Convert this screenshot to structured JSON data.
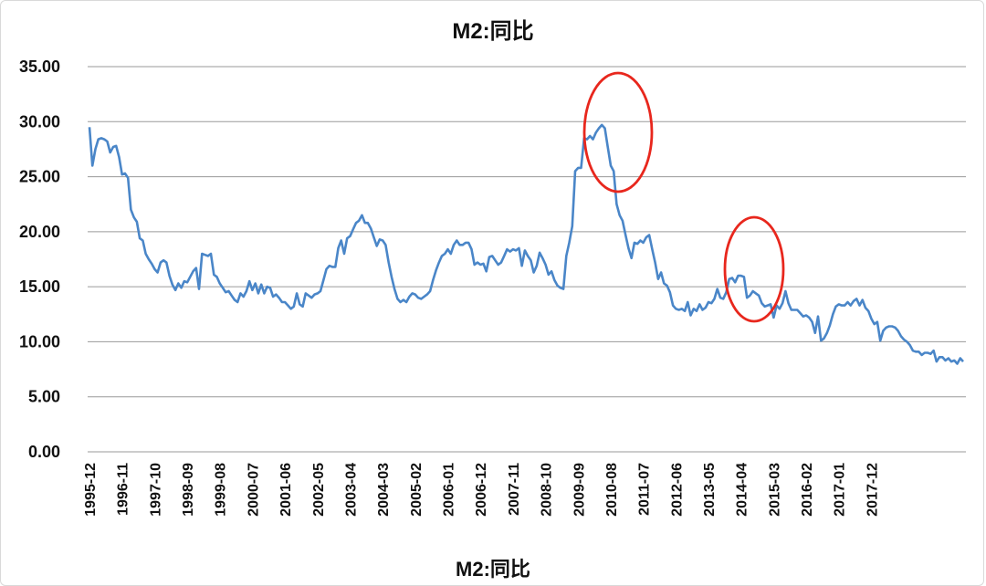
{
  "chart_data": {
    "type": "line",
    "title": "M2:同比",
    "xlabel": "M2:同比",
    "ylabel": "",
    "ylim": [
      0,
      35
    ],
    "yticks": [
      "0.00",
      "5.00",
      "10.00",
      "15.00",
      "20.00",
      "25.00",
      "30.00",
      "35.00"
    ],
    "xticks": [
      "1995-12",
      "1996-11",
      "1997-10",
      "1998-09",
      "1999-08",
      "2000-07",
      "2001-06",
      "2002-05",
      "2003-04",
      "2004-03",
      "2005-02",
      "2006-01",
      "2006-12",
      "2007-11",
      "2008-10",
      "2009-09",
      "2010-08",
      "2011-07",
      "2012-06",
      "2013-05",
      "2014-04",
      "2015-03",
      "2016-02",
      "2017-01",
      "2017-12"
    ],
    "grid": true,
    "legend": "none",
    "line_color": "#4a86c8",
    "annotation_color": "#e8271d",
    "annotations": [
      {
        "type": "ellipse",
        "around": "2009 peak"
      },
      {
        "type": "ellipse",
        "around": "2013 peak"
      }
    ],
    "series": [
      {
        "name": "",
        "x_start": "1995-12",
        "x_end": "2018-08",
        "values": [
          29.5,
          26.0,
          27.5,
          28.4,
          28.5,
          28.4,
          28.2,
          27.2,
          27.7,
          27.8,
          26.8,
          25.2,
          25.3,
          24.9,
          22.0,
          21.3,
          20.9,
          19.4,
          19.2,
          18.0,
          17.5,
          17.1,
          16.6,
          16.3,
          17.2,
          17.4,
          17.2,
          16.0,
          15.2,
          14.7,
          15.3,
          14.9,
          15.5,
          15.4,
          15.9,
          16.4,
          16.7,
          14.8,
          18.0,
          17.9,
          17.8,
          18.0,
          16.1,
          15.9,
          15.3,
          14.9,
          14.5,
          14.6,
          14.2,
          13.8,
          13.6,
          14.4,
          14.1,
          14.6,
          15.5,
          14.7,
          15.3,
          14.4,
          15.2,
          14.4,
          15.0,
          14.9,
          14.1,
          14.3,
          14.0,
          13.6,
          13.6,
          13.3,
          13.0,
          13.2,
          14.4,
          13.4,
          13.2,
          14.4,
          14.2,
          14.0,
          14.3,
          14.4,
          14.6,
          15.6,
          16.6,
          16.9,
          16.8,
          16.8,
          18.5,
          19.2,
          18.0,
          19.4,
          19.6,
          20.2,
          20.8,
          21.0,
          21.5,
          20.8,
          20.8,
          20.3,
          19.5,
          18.7,
          19.3,
          19.2,
          18.8,
          17.2,
          15.9,
          14.8,
          13.9,
          13.6,
          13.8,
          13.6,
          14.1,
          14.4,
          14.3,
          14.0,
          13.9,
          14.1,
          14.3,
          14.6,
          15.6,
          16.5,
          17.2,
          17.8,
          18.0,
          18.4,
          18.0,
          18.8,
          19.2,
          18.8,
          18.8,
          19.0,
          19.0,
          18.4,
          17.0,
          17.2,
          17.0,
          17.1,
          16.4,
          17.7,
          17.8,
          17.4,
          17.0,
          17.2,
          17.8,
          18.4,
          18.2,
          18.4,
          18.3,
          18.5,
          16.9,
          18.3,
          17.8,
          17.4,
          16.3,
          16.9,
          18.1,
          17.6,
          17.0,
          16.1,
          16.4,
          15.6,
          15.1,
          14.9,
          14.8,
          17.8,
          19.0,
          20.5,
          25.5,
          25.8,
          25.8,
          28.5,
          28.4,
          28.7,
          28.4,
          29.0,
          29.4,
          29.7,
          29.4,
          27.7,
          26.0,
          25.5,
          22.5,
          21.5,
          21.0,
          19.7,
          18.5,
          17.6,
          19.0,
          18.9,
          19.2,
          19.0,
          19.5,
          19.7,
          18.4,
          17.2,
          15.7,
          16.3,
          15.3,
          15.1,
          14.5,
          13.3,
          13.0,
          12.9,
          13.0,
          12.8,
          13.6,
          12.4,
          13.0,
          12.8,
          13.4,
          12.9,
          13.1,
          13.6,
          13.5,
          13.9,
          14.8,
          14.0,
          13.9,
          14.5,
          15.7,
          15.8,
          15.4,
          16.0,
          16.0,
          15.9,
          14.0,
          14.2,
          14.6,
          14.4,
          14.2,
          13.5,
          13.2,
          13.3,
          13.4,
          12.2,
          13.3,
          13.0,
          13.5,
          14.6,
          13.5,
          12.9,
          12.9,
          12.9,
          12.6,
          12.3,
          12.4,
          12.2,
          11.8,
          10.8,
          12.3,
          10.1,
          10.3,
          10.8,
          11.5,
          12.5,
          13.2,
          13.4,
          13.3,
          13.3,
          13.6,
          13.3,
          13.7,
          13.9,
          13.3,
          13.8,
          13.1,
          12.8,
          12.1,
          11.6,
          11.8,
          10.1,
          11.0,
          11.3,
          11.4,
          11.4,
          11.3,
          11.0,
          10.5,
          10.2,
          10.0,
          9.7,
          9.2,
          9.1,
          9.1,
          8.8,
          9.0,
          9.0,
          8.9,
          9.2,
          8.2,
          8.6,
          8.6,
          8.3,
          8.5,
          8.2,
          8.3,
          8.0,
          8.5,
          8.2
        ]
      }
    ]
  }
}
